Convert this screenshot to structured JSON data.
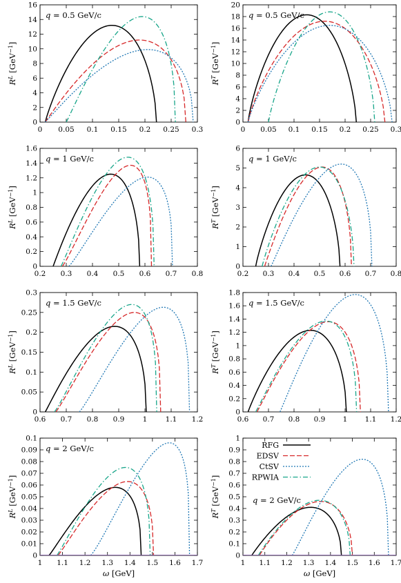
{
  "colors": {
    "RFG": "#000000",
    "EDSV": "#d62728",
    "CtSV": "#1f77b4",
    "RPWIA": "#17a589"
  },
  "legend": {
    "entries": [
      {
        "key": "RFG",
        "label": "RFG"
      },
      {
        "key": "EDSV",
        "label": "EDSV"
      },
      {
        "key": "CtSV",
        "label": "CtSV"
      },
      {
        "key": "RPWIA",
        "label": "RPWIA"
      }
    ]
  },
  "chart_data": [
    {
      "type": "line",
      "panel": "q05-L",
      "qlabel": "q = 0.5 GeV/c",
      "ylabel": "R^L [GeV^-1]",
      "xlabel": "",
      "xlim": [
        0,
        0.3
      ],
      "ylim": [
        0,
        16
      ],
      "xticks": [
        0,
        0.05,
        0.1,
        0.15,
        0.2,
        0.25,
        0.3
      ],
      "xtick_labels": [
        "0",
        "0.05",
        "0.1",
        "0.15",
        "0.2",
        "0.25",
        "0.3"
      ],
      "yticks": [
        0,
        2,
        4,
        6,
        8,
        10,
        12,
        14,
        16
      ],
      "series": [
        {
          "name": "RFG",
          "x0": 0.01,
          "x1": 0.222,
          "peak_x": 0.137,
          "peak_y": 13.2
        },
        {
          "name": "EDSV",
          "x0": 0.01,
          "x1": 0.278,
          "peak_x": 0.19,
          "peak_y": 11.2
        },
        {
          "name": "CtSV",
          "x0": 0.01,
          "x1": 0.292,
          "peak_x": 0.205,
          "peak_y": 9.9
        },
        {
          "name": "RPWIA",
          "x0": 0.05,
          "x1": 0.258,
          "peak_x": 0.195,
          "peak_y": 14.4
        }
      ]
    },
    {
      "type": "line",
      "panel": "q05-T",
      "qlabel": "q = 0.5 GeV/c",
      "ylabel": "R^T [GeV^-1]",
      "xlabel": "",
      "xlim": [
        0,
        0.3
      ],
      "ylim": [
        0,
        20
      ],
      "xticks": [
        0,
        0.05,
        0.1,
        0.15,
        0.2,
        0.25,
        0.3
      ],
      "xtick_labels": [
        "0",
        "0.05",
        "0.1",
        "0.15",
        "0.2",
        "0.25",
        "0.3"
      ],
      "yticks": [
        0,
        2,
        4,
        6,
        8,
        10,
        12,
        14,
        16,
        18,
        20
      ],
      "series": [
        {
          "name": "RFG",
          "x0": 0.01,
          "x1": 0.222,
          "peak_x": 0.125,
          "peak_y": 18.3
        },
        {
          "name": "EDSV",
          "x0": 0.01,
          "x1": 0.278,
          "peak_x": 0.16,
          "peak_y": 17.2
        },
        {
          "name": "CtSV",
          "x0": 0.01,
          "x1": 0.292,
          "peak_x": 0.17,
          "peak_y": 16.5
        },
        {
          "name": "RPWIA",
          "x0": 0.05,
          "x1": 0.258,
          "peak_x": 0.17,
          "peak_y": 18.8
        }
      ]
    },
    {
      "type": "line",
      "panel": "q1-L",
      "qlabel": "q = 1 GeV/c",
      "ylabel": "R^L [GeV^-1]",
      "xlabel": "",
      "xlim": [
        0.2,
        0.8
      ],
      "ylim": [
        0,
        1.6
      ],
      "xticks": [
        0.2,
        0.3,
        0.4,
        0.5,
        0.6,
        0.7,
        0.8
      ],
      "xtick_labels": [
        "0.2",
        "0.3",
        "0.4",
        "0.5",
        "0.6",
        "0.7",
        "0.8"
      ],
      "yticks": [
        0,
        0.2,
        0.4,
        0.6,
        0.8,
        1,
        1.2,
        1.4,
        1.6
      ],
      "series": [
        {
          "name": "RFG",
          "x0": 0.25,
          "x1": 0.58,
          "peak_x": 0.47,
          "peak_y": 1.25
        },
        {
          "name": "EDSV",
          "x0": 0.285,
          "x1": 0.625,
          "peak_x": 0.545,
          "peak_y": 1.37
        },
        {
          "name": "CtSV",
          "x0": 0.31,
          "x1": 0.705,
          "peak_x": 0.61,
          "peak_y": 1.21
        },
        {
          "name": "RPWIA",
          "x0": 0.28,
          "x1": 0.635,
          "peak_x": 0.535,
          "peak_y": 1.48
        }
      ]
    },
    {
      "type": "line",
      "panel": "q1-T",
      "qlabel": "q = 1 GeV/c",
      "ylabel": "R^T [GeV^-1]",
      "xlabel": "",
      "xlim": [
        0.2,
        0.8
      ],
      "ylim": [
        0,
        6
      ],
      "xticks": [
        0.2,
        0.3,
        0.4,
        0.5,
        0.6,
        0.7,
        0.8
      ],
      "xtick_labels": [
        "0.2",
        "0.3",
        "0.4",
        "0.5",
        "0.6",
        "0.7",
        "0.8"
      ],
      "yticks": [
        0,
        1,
        2,
        3,
        4,
        5,
        6
      ],
      "series": [
        {
          "name": "RFG",
          "x0": 0.25,
          "x1": 0.58,
          "peak_x": 0.445,
          "peak_y": 4.65
        },
        {
          "name": "EDSV",
          "x0": 0.285,
          "x1": 0.625,
          "peak_x": 0.51,
          "peak_y": 5.05
        },
        {
          "name": "CtSV",
          "x0": 0.31,
          "x1": 0.705,
          "peak_x": 0.585,
          "peak_y": 5.2
        },
        {
          "name": "RPWIA",
          "x0": 0.275,
          "x1": 0.635,
          "peak_x": 0.5,
          "peak_y": 5.05
        }
      ]
    },
    {
      "type": "line",
      "panel": "q15-L",
      "qlabel": "q = 1.5 GeV/c",
      "ylabel": "R^L [GeV^-1]",
      "xlabel": "",
      "xlim": [
        0.6,
        1.2
      ],
      "ylim": [
        0,
        0.3
      ],
      "xticks": [
        0.6,
        0.7,
        0.8,
        0.9,
        1,
        1.1,
        1.2
      ],
      "xtick_labels": [
        "0.6",
        "0.7",
        "0.8",
        "0.9",
        "1",
        "1.1",
        "1.2"
      ],
      "yticks": [
        0,
        0.05,
        0.1,
        0.15,
        0.2,
        0.25,
        0.3
      ],
      "series": [
        {
          "name": "RFG",
          "x0": 0.62,
          "x1": 1.005,
          "peak_x": 0.885,
          "peak_y": 0.215
        },
        {
          "name": "EDSV",
          "x0": 0.66,
          "x1": 1.06,
          "peak_x": 0.96,
          "peak_y": 0.25
        },
        {
          "name": "CtSV",
          "x0": 0.75,
          "x1": 1.17,
          "peak_x": 1.07,
          "peak_y": 0.263
        },
        {
          "name": "RPWIA",
          "x0": 0.655,
          "x1": 1.045,
          "peak_x": 0.95,
          "peak_y": 0.27
        }
      ]
    },
    {
      "type": "line",
      "panel": "q15-T",
      "qlabel": "q = 1.5 GeV/c",
      "ylabel": "R^T [GeV^-1]",
      "xlabel": "",
      "xlim": [
        0.6,
        1.2
      ],
      "ylim": [
        0,
        1.8
      ],
      "xticks": [
        0.6,
        0.7,
        0.8,
        0.9,
        1,
        1.1,
        1.2
      ],
      "xtick_labels": [
        "0.6",
        "0.7",
        "0.8",
        "0.9",
        "1",
        "1.1",
        "1.2"
      ],
      "yticks": [
        0,
        0.2,
        0.4,
        0.6,
        0.8,
        1,
        1.2,
        1.4,
        1.6,
        1.8
      ],
      "series": [
        {
          "name": "RFG",
          "x0": 0.62,
          "x1": 1.005,
          "peak_x": 0.865,
          "peak_y": 1.23
        },
        {
          "name": "EDSV",
          "x0": 0.655,
          "x1": 1.06,
          "peak_x": 0.935,
          "peak_y": 1.36
        },
        {
          "name": "CtSV",
          "x0": 0.745,
          "x1": 1.17,
          "peak_x": 1.04,
          "peak_y": 1.77
        },
        {
          "name": "RPWIA",
          "x0": 0.65,
          "x1": 1.045,
          "peak_x": 0.925,
          "peak_y": 1.37
        }
      ]
    },
    {
      "type": "line",
      "panel": "q2-L",
      "qlabel": "q = 2 GeV/c",
      "ylabel": "R^L [GeV^-1]",
      "xlabel": "ω [GeV]",
      "xlim": [
        1,
        1.7
      ],
      "ylim": [
        0,
        0.1
      ],
      "xticks": [
        1,
        1.1,
        1.2,
        1.3,
        1.4,
        1.5,
        1.6,
        1.7
      ],
      "xtick_labels": [
        "1",
        "1.1",
        "1.2",
        "1.3",
        "1.4",
        "1.5",
        "1.6",
        "1.7"
      ],
      "yticks": [
        0,
        0.01,
        0.02,
        0.03,
        0.04,
        0.05,
        0.06,
        0.07,
        0.08,
        0.09,
        0.1
      ],
      "series": [
        {
          "name": "RFG",
          "x0": 1.04,
          "x1": 1.45,
          "peak_x": 1.335,
          "peak_y": 0.058
        },
        {
          "name": "EDSV",
          "x0": 1.08,
          "x1": 1.505,
          "peak_x": 1.39,
          "peak_y": 0.063
        },
        {
          "name": "CtSV",
          "x0": 1.225,
          "x1": 1.665,
          "peak_x": 1.575,
          "peak_y": 0.096
        },
        {
          "name": "RPWIA",
          "x0": 1.075,
          "x1": 1.49,
          "peak_x": 1.38,
          "peak_y": 0.075
        }
      ]
    },
    {
      "type": "line",
      "panel": "q2-T",
      "qlabel": "q = 2 GeV/c",
      "ylabel": "R^T [GeV^-1]",
      "xlabel": "ω [GeV]",
      "xlim": [
        1,
        1.7
      ],
      "ylim": [
        0,
        1
      ],
      "xticks": [
        1,
        1.1,
        1.2,
        1.3,
        1.4,
        1.5,
        1.6,
        1.7
      ],
      "xtick_labels": [
        "1",
        "1.1",
        "1.2",
        "1.3",
        "1.4",
        "1.5",
        "1.6",
        "1.7"
      ],
      "yticks": [
        0,
        0.1,
        0.2,
        0.3,
        0.4,
        0.5,
        0.6,
        0.7,
        0.8,
        0.9,
        1
      ],
      "series": [
        {
          "name": "RFG",
          "x0": 1.04,
          "x1": 1.45,
          "peak_x": 1.31,
          "peak_y": 0.41
        },
        {
          "name": "EDSV",
          "x0": 1.075,
          "x1": 1.5,
          "peak_x": 1.355,
          "peak_y": 0.46
        },
        {
          "name": "CtSV",
          "x0": 1.225,
          "x1": 1.665,
          "peak_x": 1.545,
          "peak_y": 0.82
        },
        {
          "name": "RPWIA",
          "x0": 1.07,
          "x1": 1.49,
          "peak_x": 1.35,
          "peak_y": 0.47
        }
      ]
    }
  ]
}
